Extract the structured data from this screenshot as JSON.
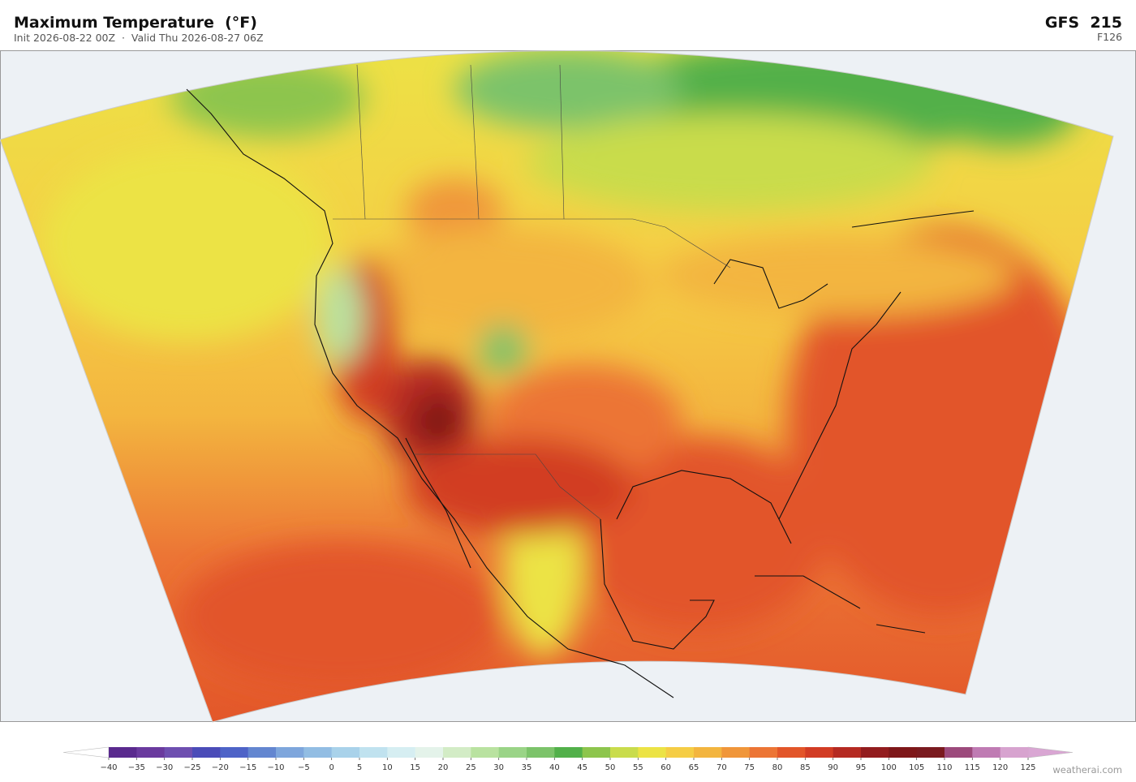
{
  "header": {
    "title": "Maximum Temperature  (°F)",
    "subtitle": "Init 2026-08-22 00Z  ·  Valid Thu 2026-08-27 06Z",
    "model": "GFS  215",
    "forecast": "F126"
  },
  "colorbar": {
    "ticks": [
      {
        "value": -40,
        "label": "−40"
      },
      {
        "value": -35,
        "label": "−35"
      },
      {
        "value": -30,
        "label": "−30"
      },
      {
        "value": -25,
        "label": "−25"
      },
      {
        "value": -20,
        "label": "−20"
      },
      {
        "value": -15,
        "label": "−15"
      },
      {
        "value": -10,
        "label": "−10"
      },
      {
        "value": -5,
        "label": "−5"
      },
      0,
      5,
      10,
      15,
      20,
      25,
      30,
      35,
      40,
      45,
      50,
      55,
      60,
      65,
      70,
      75,
      80,
      85,
      90,
      95,
      100,
      105,
      110,
      115,
      120,
      125
    ],
    "colors": [
      "#5a2a8e",
      "#6a3a9e",
      "#6e4fb0",
      "#4b4cb8",
      "#4e63c7",
      "#6386d0",
      "#7ea6dc",
      "#92bde3",
      "#a9d2ea",
      "#c0e2ef",
      "#d6eef2",
      "#e4f3ea",
      "#d3ecc6",
      "#b9e2a0",
      "#9ad487",
      "#7cc36a",
      "#52b04a",
      "#8dc54d",
      "#c9dc4c",
      "#ece345",
      "#f5cd45",
      "#f3b53f",
      "#f0963a",
      "#ec7535",
      "#e25529",
      "#d23c24",
      "#b52a22",
      "#921c1e",
      "#7e1719",
      "#7a1a1f",
      "#9c4a7c",
      "#bf7bb3",
      "#d7a3cf"
    ],
    "under_color": "#ffffff",
    "over_color": "#d9a6d3"
  },
  "footer": {
    "credit": "weatherai.com"
  }
}
